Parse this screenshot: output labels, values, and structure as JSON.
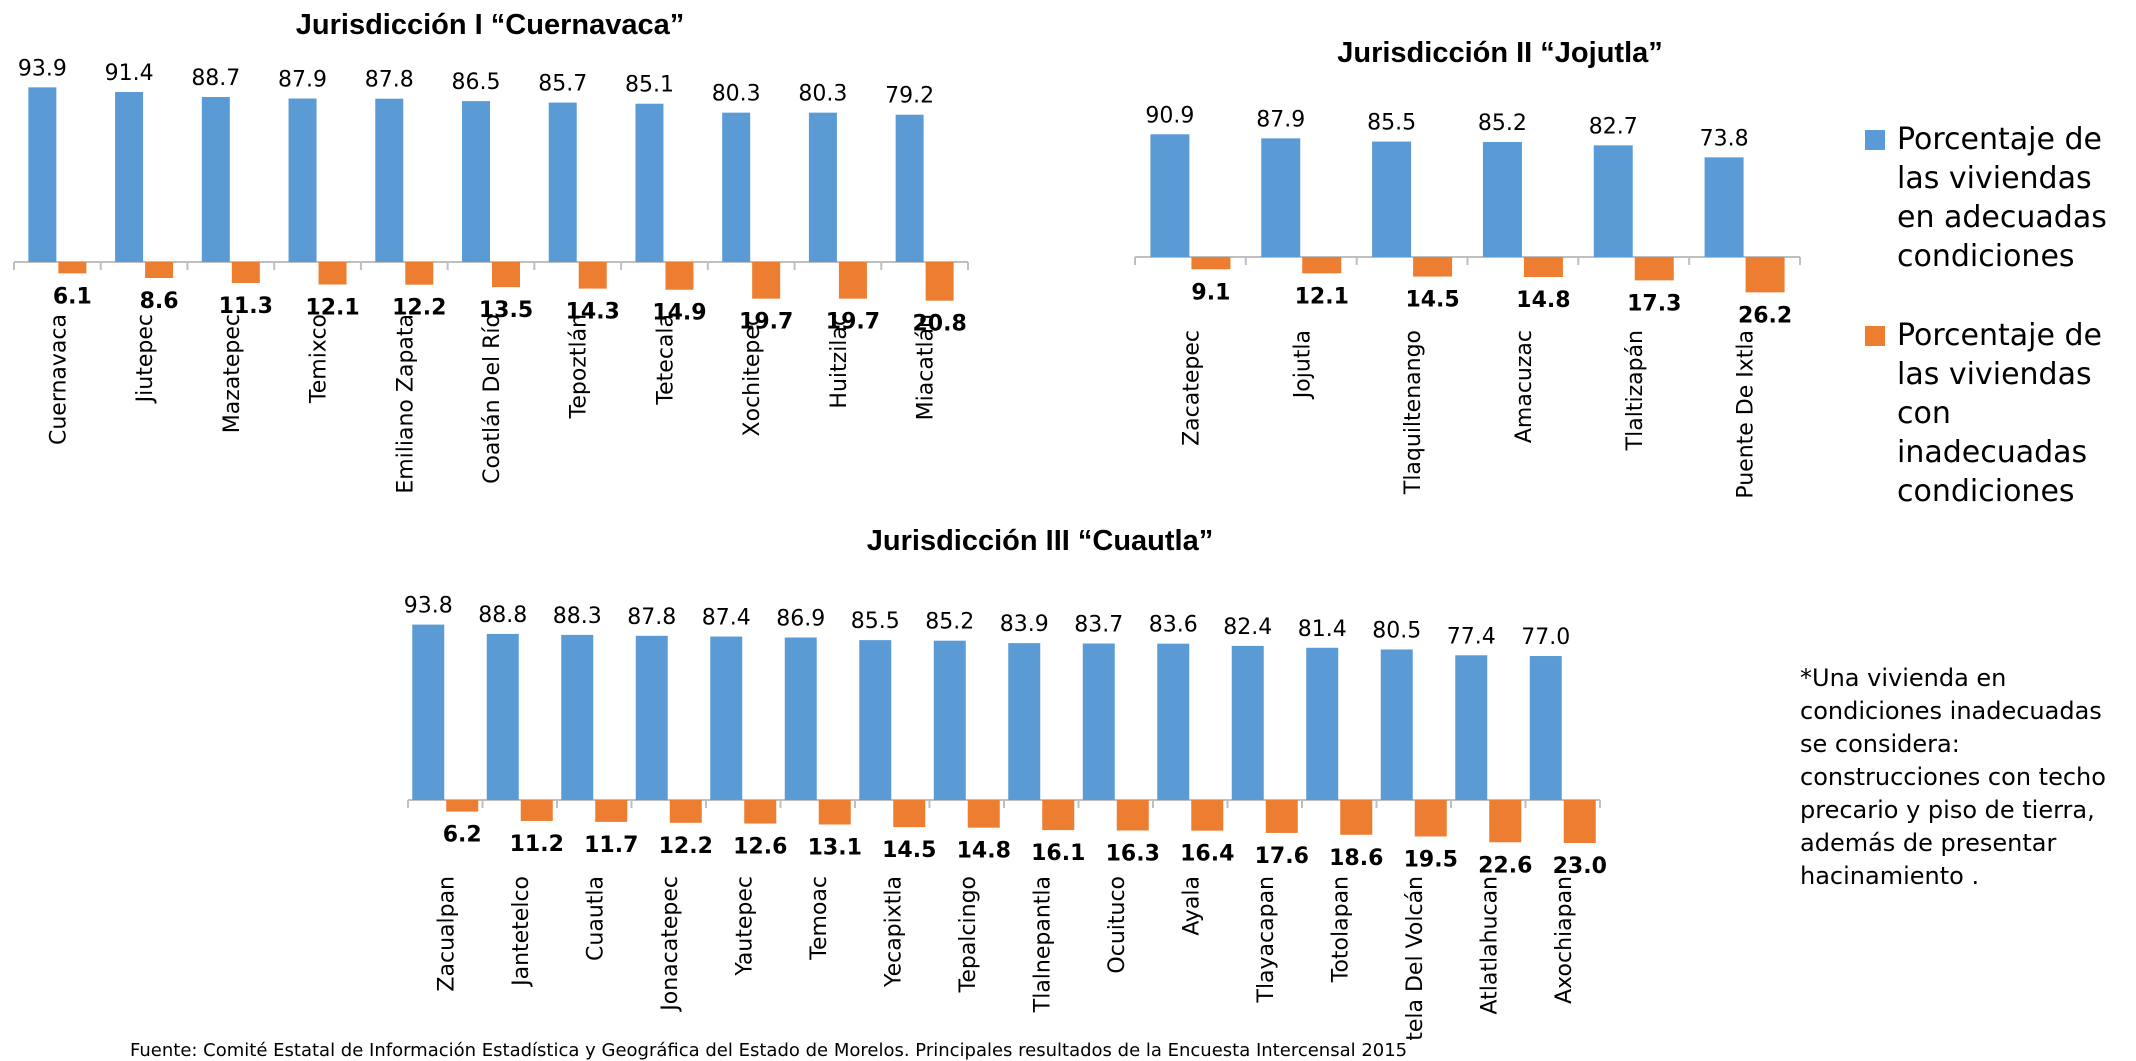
{
  "colors": {
    "adequate": "#5B9BD5",
    "inadequate": "#ED7D31",
    "axis": "#BFBFBF"
  },
  "legend": {
    "adequate": "Porcentaje de las viviendas en adecuadas condiciones",
    "inadequate": "Porcentaje de las viviendas con inadecuadas condiciones"
  },
  "note": "*Una vivienda en condiciones inadecuadas se considera: construcciones con techo precario y piso de tierra, además de presentar hacinamiento .",
  "source": "Fuente: Comité Estatal de Información Estadística y Geográfica del Estado de Morelos. Principales resultados de la Encuesta Intercensal 2015",
  "chart_data": [
    {
      "type": "bar",
      "title": "Jurisdicción I “Cuernavaca”",
      "categories": [
        "Cuernavaca",
        "Jiutepec",
        "Mazatepec",
        "Temixco",
        "Emiliano Zapata",
        "Coatlán Del Río",
        "Tepoztlán",
        "Tetecala",
        "Xochitepec",
        "Huitzilac",
        "Miacatlán"
      ],
      "series": [
        {
          "name": "Porcentaje de las viviendas en adecuadas condiciones",
          "values": [
            93.9,
            91.4,
            88.7,
            87.9,
            87.8,
            86.5,
            85.7,
            85.1,
            80.3,
            80.3,
            79.2
          ]
        },
        {
          "name": "Porcentaje de las viviendas con inadecuadas condiciones",
          "values": [
            6.1,
            8.6,
            11.3,
            12.1,
            12.2,
            13.5,
            14.3,
            14.9,
            19.7,
            19.7,
            20.8
          ]
        }
      ]
    },
    {
      "type": "bar",
      "title": "Jurisdicción II “Jojutla”",
      "categories": [
        "Zacatepec",
        "Jojutla",
        "Tlaquiltenango",
        "Amacuzac",
        "Tlaltizapán",
        "Puente De Ixtla"
      ],
      "series": [
        {
          "name": "Porcentaje de las viviendas en adecuadas condiciones",
          "values": [
            90.9,
            87.9,
            85.5,
            85.2,
            82.7,
            73.8
          ]
        },
        {
          "name": "Porcentaje de las viviendas con inadecuadas condiciones",
          "values": [
            9.1,
            12.1,
            14.5,
            14.8,
            17.3,
            26.2
          ]
        }
      ]
    },
    {
      "type": "bar",
      "title": "Jurisdicción III “Cuautla”",
      "categories": [
        "Zacualpan",
        "Jantetelco",
        "Cuautla",
        "Jonacatepec",
        "Yautepec",
        "Temoac",
        "Yecapixtla",
        "Tepalcingo",
        "Tlalnepantla",
        "Ocuituco",
        "Ayala",
        "Tlayacapan",
        "Totolapan",
        "Tetela Del Volcán",
        "Atlatlahucan",
        "Axochiapan"
      ],
      "series": [
        {
          "name": "Porcentaje de las viviendas en adecuadas condiciones",
          "values": [
            93.8,
            88.8,
            88.3,
            87.8,
            87.4,
            86.9,
            85.5,
            85.2,
            83.9,
            83.7,
            83.6,
            82.4,
            81.4,
            80.5,
            77.4,
            77.0
          ]
        },
        {
          "name": "Porcentaje de las viviendas con inadecuadas condiciones",
          "values": [
            6.2,
            11.2,
            11.7,
            12.2,
            12.6,
            13.1,
            14.5,
            14.8,
            16.1,
            16.3,
            16.4,
            17.6,
            18.6,
            19.5,
            22.6,
            23.0
          ]
        }
      ]
    }
  ]
}
